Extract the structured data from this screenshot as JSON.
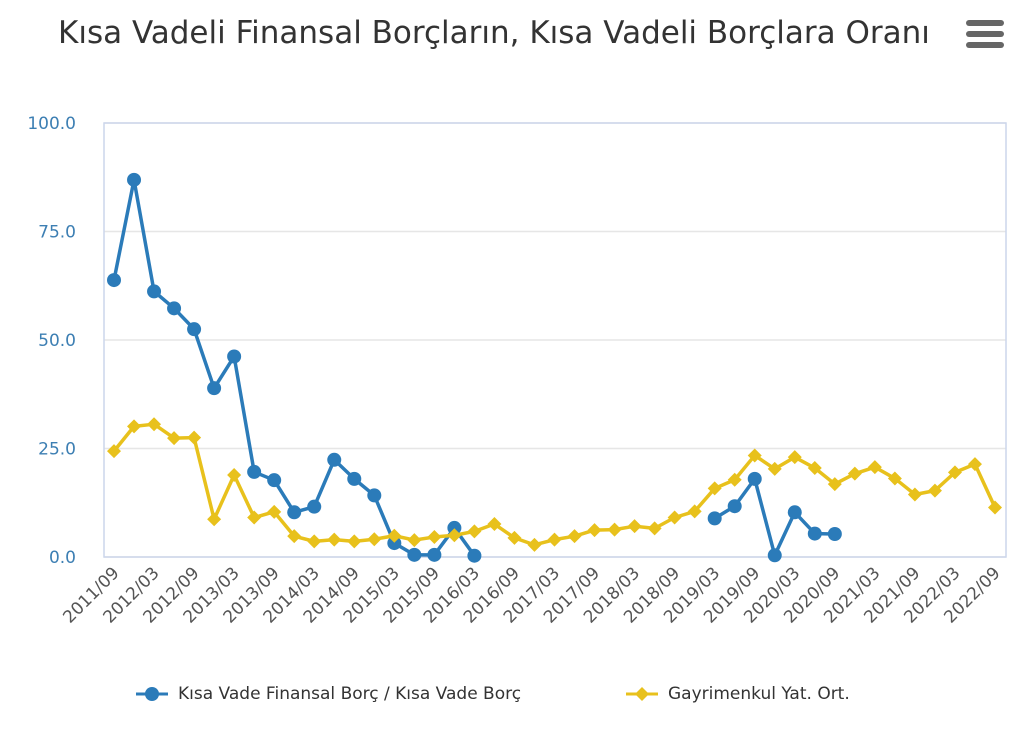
{
  "title": "Kısa Vadeli Finansal Borçların, Kısa Vadeli Borçlara Oranı",
  "menu_icon": "hamburger-menu-icon",
  "chart_data": {
    "type": "line",
    "title": "Kısa Vadeli Finansal Borçların, Kısa Vadeli Borçlara Oranı",
    "xlabel": "",
    "ylabel": "",
    "ylim": [
      0,
      100
    ],
    "yticks": [
      "0.0",
      "25.0",
      "50.0",
      "75.0",
      "100.0"
    ],
    "grid": true,
    "legend": "bottom-center",
    "x": [
      "2011/09",
      "2011/12",
      "2012/03",
      "2012/06",
      "2012/09",
      "2012/12",
      "2013/03",
      "2013/06",
      "2013/09",
      "2013/12",
      "2014/03",
      "2014/06",
      "2014/09",
      "2014/12",
      "2015/03",
      "2015/06",
      "2015/09",
      "2015/12",
      "2016/03",
      "2016/06",
      "2016/09",
      "2016/12",
      "2017/03",
      "2017/06",
      "2017/09",
      "2017/12",
      "2018/03",
      "2018/06",
      "2018/09",
      "2018/12",
      "2019/03",
      "2019/06",
      "2019/09",
      "2019/12",
      "2020/03",
      "2020/06",
      "2020/09",
      "2020/12",
      "2021/03",
      "2021/06",
      "2021/09",
      "2021/12",
      "2022/03",
      "2022/06",
      "2022/09"
    ],
    "xtick_labels": [
      "2011/09",
      "2012/03",
      "2012/09",
      "2013/03",
      "2013/09",
      "2014/03",
      "2014/09",
      "2015/03",
      "2015/09",
      "2016/03",
      "2016/09",
      "2017/03",
      "2017/09",
      "2018/03",
      "2018/09",
      "2019/03",
      "2019/09",
      "2020/03",
      "2020/09",
      "2021/03",
      "2021/09",
      "2022/03",
      "2022/09"
    ],
    "series": [
      {
        "name": "Kısa Vade Finansal Borç / Kısa Vade Borç",
        "color": "#2b7bb9",
        "marker": "circle",
        "values": [
          63.8,
          86.9,
          61.2,
          57.3,
          52.5,
          38.9,
          46.2,
          19.6,
          17.7,
          10.3,
          11.6,
          22.4,
          18.0,
          14.2,
          3.2,
          0.5,
          0.5,
          6.7,
          0.3,
          null,
          null,
          null,
          null,
          null,
          null,
          null,
          null,
          null,
          null,
          null,
          8.9,
          11.7,
          18.0,
          0.4,
          10.3,
          5.4,
          5.3,
          null,
          null,
          null,
          null,
          null,
          null,
          null,
          null
        ]
      },
      {
        "name": "Gayrimenkul Yat. Ort.",
        "color": "#e8c11c",
        "marker": "diamond",
        "values": [
          24.4,
          30.1,
          30.6,
          27.4,
          27.5,
          8.7,
          18.9,
          9.1,
          10.4,
          4.8,
          3.6,
          4.0,
          3.6,
          4.1,
          4.9,
          3.9,
          4.6,
          5.0,
          5.9,
          7.6,
          4.4,
          2.8,
          4.0,
          4.8,
          6.2,
          6.3,
          7.1,
          6.6,
          9.1,
          10.5,
          15.8,
          17.8,
          23.4,
          20.3,
          23.0,
          20.5,
          16.8,
          19.2,
          20.7,
          18.1,
          14.4,
          15.3,
          19.5,
          21.4,
          11.4
        ]
      }
    ]
  }
}
